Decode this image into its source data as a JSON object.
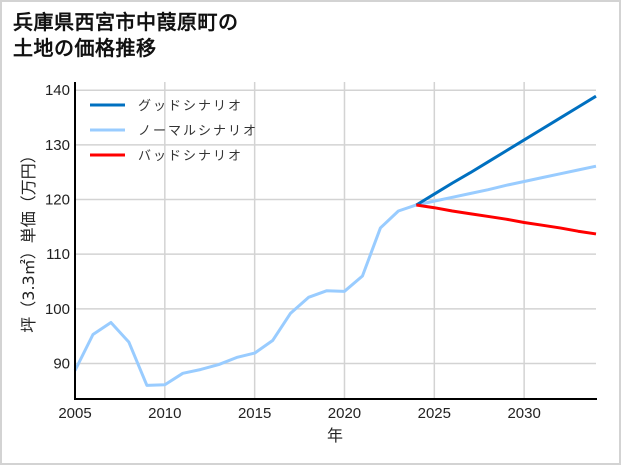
{
  "title": "兵庫県西宮市中葭原町の\n土地の価格推移",
  "chart_data": {
    "type": "line",
    "title": "兵庫県西宮市中葭原町の土地の価格推移",
    "xlabel": "年",
    "ylabel": "坪（3.3㎡）単価（万円）",
    "xlim": [
      2005,
      2034
    ],
    "ylim": [
      83.5,
      141.5
    ],
    "x_ticks": [
      2005,
      2010,
      2015,
      2020,
      2025,
      2030
    ],
    "y_ticks": [
      90,
      100,
      110,
      120,
      130,
      140
    ],
    "grid": true,
    "legend_position": "upper left",
    "series": [
      {
        "name": "グッドシナリオ",
        "color": "#0070c0",
        "x": [
          2024,
          2025,
          2026,
          2027,
          2028,
          2029,
          2030,
          2031,
          2032,
          2033,
          2034
        ],
        "values": [
          119.0,
          121.0,
          123.0,
          124.9,
          126.9,
          128.9,
          130.9,
          132.9,
          134.9,
          136.9,
          138.9
        ]
      },
      {
        "name": "ノーマルシナリオ",
        "color": "#99ccff",
        "x": [
          2005,
          2006,
          2007,
          2008,
          2009,
          2010,
          2011,
          2012,
          2013,
          2014,
          2015,
          2016,
          2017,
          2018,
          2019,
          2020,
          2021,
          2022,
          2023,
          2024,
          2025,
          2026,
          2027,
          2028,
          2029,
          2030,
          2031,
          2032,
          2033,
          2034
        ],
        "values": [
          88.7,
          95.3,
          97.5,
          93.9,
          86.0,
          86.1,
          88.2,
          88.9,
          89.8,
          91.1,
          91.9,
          94.2,
          99.2,
          102.1,
          103.3,
          103.2,
          106.0,
          114.8,
          117.9,
          119.0,
          119.7,
          120.4,
          121.1,
          121.8,
          122.6,
          123.3,
          124.0,
          124.7,
          125.4,
          126.1
        ]
      },
      {
        "name": "バッドシナリオ",
        "color": "#ff0000",
        "x": [
          2024,
          2025,
          2026,
          2027,
          2028,
          2029,
          2030,
          2031,
          2032,
          2033,
          2034
        ],
        "values": [
          119.0,
          118.5,
          117.9,
          117.4,
          116.9,
          116.4,
          115.8,
          115.3,
          114.8,
          114.2,
          113.7
        ]
      }
    ]
  }
}
